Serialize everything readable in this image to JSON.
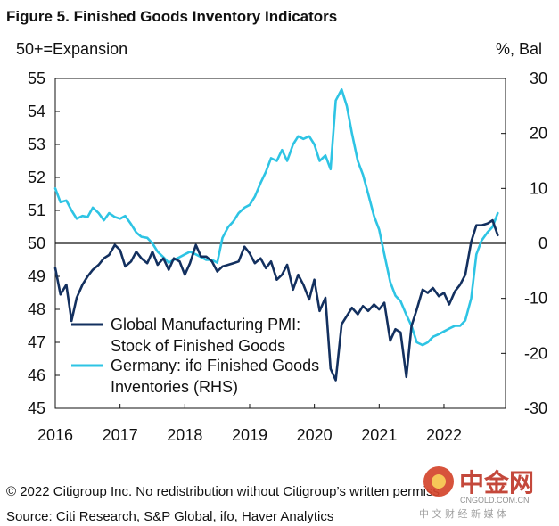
{
  "chart_data": {
    "type": "line",
    "title": "Figure 5. Finished Goods Inventory Indicators",
    "y_left_label": "50+=Expansion",
    "y_right_label": "%, Bal",
    "y_left_lim": [
      45,
      55
    ],
    "y_right_lim": [
      -30,
      30
    ],
    "x_lim": [
      2016,
      2022.95
    ],
    "x_ticks": [
      "2016",
      "2017",
      "2018",
      "2019",
      "2020",
      "2021",
      "2022"
    ],
    "y_left_ticks": [
      "45",
      "46",
      "47",
      "48",
      "49",
      "50",
      "51",
      "52",
      "53",
      "54",
      "55"
    ],
    "y_right_ticks": [
      "-30",
      "-20",
      "-10",
      "0",
      "10",
      "20",
      "30"
    ],
    "reference_line": 50,
    "legend_placement": "lower-left inside plot",
    "series": [
      {
        "name": "Global Manufacturing PMI: Stock of Finished Goods",
        "axis": "left",
        "color": "#13305f",
        "points": [
          [
            2016.0,
            49.25
          ],
          [
            2016.08,
            48.45
          ],
          [
            2016.17,
            48.75
          ],
          [
            2016.25,
            47.65
          ],
          [
            2016.33,
            48.35
          ],
          [
            2016.42,
            48.75
          ],
          [
            2016.5,
            49.0
          ],
          [
            2016.58,
            49.2
          ],
          [
            2016.67,
            49.35
          ],
          [
            2016.75,
            49.55
          ],
          [
            2016.83,
            49.65
          ],
          [
            2016.92,
            49.95
          ],
          [
            2017.0,
            49.8
          ],
          [
            2017.08,
            49.3
          ],
          [
            2017.17,
            49.45
          ],
          [
            2017.25,
            49.75
          ],
          [
            2017.33,
            49.55
          ],
          [
            2017.42,
            49.4
          ],
          [
            2017.5,
            49.75
          ],
          [
            2017.58,
            49.35
          ],
          [
            2017.67,
            49.55
          ],
          [
            2017.75,
            49.2
          ],
          [
            2017.83,
            49.55
          ],
          [
            2017.92,
            49.45
          ],
          [
            2018.0,
            49.05
          ],
          [
            2018.08,
            49.4
          ],
          [
            2018.17,
            49.95
          ],
          [
            2018.25,
            49.6
          ],
          [
            2018.33,
            49.6
          ],
          [
            2018.42,
            49.45
          ],
          [
            2018.5,
            49.15
          ],
          [
            2018.58,
            49.3
          ],
          [
            2018.67,
            49.35
          ],
          [
            2018.75,
            49.4
          ],
          [
            2018.83,
            49.45
          ],
          [
            2018.92,
            49.9
          ],
          [
            2019.0,
            49.7
          ],
          [
            2019.08,
            49.4
          ],
          [
            2019.17,
            49.55
          ],
          [
            2019.25,
            49.25
          ],
          [
            2019.33,
            49.45
          ],
          [
            2019.42,
            48.9
          ],
          [
            2019.5,
            49.05
          ],
          [
            2019.58,
            49.35
          ],
          [
            2019.67,
            48.6
          ],
          [
            2019.75,
            49.05
          ],
          [
            2019.83,
            48.75
          ],
          [
            2019.92,
            48.3
          ],
          [
            2020.0,
            48.9
          ],
          [
            2020.08,
            47.95
          ],
          [
            2020.17,
            48.35
          ],
          [
            2020.25,
            46.2
          ],
          [
            2020.33,
            45.85
          ],
          [
            2020.42,
            47.55
          ],
          [
            2020.5,
            47.8
          ],
          [
            2020.58,
            48.05
          ],
          [
            2020.67,
            47.85
          ],
          [
            2020.75,
            48.1
          ],
          [
            2020.83,
            47.95
          ],
          [
            2020.92,
            48.15
          ],
          [
            2021.0,
            48.0
          ],
          [
            2021.08,
            48.2
          ],
          [
            2021.17,
            47.05
          ],
          [
            2021.25,
            47.4
          ],
          [
            2021.33,
            47.3
          ],
          [
            2021.42,
            45.95
          ],
          [
            2021.5,
            47.5
          ],
          [
            2021.58,
            48.0
          ],
          [
            2021.67,
            48.6
          ],
          [
            2021.75,
            48.5
          ],
          [
            2021.83,
            48.65
          ],
          [
            2021.92,
            48.4
          ],
          [
            2022.0,
            48.5
          ],
          [
            2022.08,
            48.15
          ],
          [
            2022.17,
            48.55
          ],
          [
            2022.25,
            48.75
          ],
          [
            2022.33,
            49.05
          ],
          [
            2022.42,
            50.05
          ],
          [
            2022.5,
            50.55
          ],
          [
            2022.58,
            50.55
          ],
          [
            2022.67,
            50.6
          ],
          [
            2022.75,
            50.7
          ],
          [
            2022.83,
            50.25
          ]
        ]
      },
      {
        "name": "Germany: ifo Finished Goods Inventories (RHS)",
        "axis": "right",
        "color": "#2ec4e4",
        "points": [
          [
            2016.0,
            10.0
          ],
          [
            2016.08,
            7.5
          ],
          [
            2016.17,
            7.8
          ],
          [
            2016.25,
            6.0
          ],
          [
            2016.33,
            4.5
          ],
          [
            2016.42,
            5.0
          ],
          [
            2016.5,
            4.8
          ],
          [
            2016.58,
            6.5
          ],
          [
            2016.67,
            5.5
          ],
          [
            2016.75,
            4.2
          ],
          [
            2016.83,
            5.5
          ],
          [
            2016.92,
            4.8
          ],
          [
            2017.0,
            4.5
          ],
          [
            2017.08,
            5.0
          ],
          [
            2017.17,
            3.5
          ],
          [
            2017.25,
            2.0
          ],
          [
            2017.33,
            1.2
          ],
          [
            2017.42,
            1.0
          ],
          [
            2017.5,
            0.0
          ],
          [
            2017.58,
            -1.5
          ],
          [
            2017.67,
            -2.5
          ],
          [
            2017.75,
            -3.5
          ],
          [
            2017.83,
            -3.0
          ],
          [
            2017.92,
            -2.5
          ],
          [
            2018.0,
            -2.0
          ],
          [
            2018.08,
            -1.5
          ],
          [
            2018.17,
            -2.0
          ],
          [
            2018.25,
            -2.5
          ],
          [
            2018.33,
            -3.0
          ],
          [
            2018.42,
            -3.0
          ],
          [
            2018.5,
            -3.5
          ],
          [
            2018.58,
            1.0
          ],
          [
            2018.67,
            3.0
          ],
          [
            2018.75,
            4.0
          ],
          [
            2018.83,
            5.5
          ],
          [
            2018.92,
            6.5
          ],
          [
            2019.0,
            7.0
          ],
          [
            2019.08,
            8.5
          ],
          [
            2019.17,
            11.0
          ],
          [
            2019.25,
            13.0
          ],
          [
            2019.33,
            15.5
          ],
          [
            2019.42,
            15.0
          ],
          [
            2019.5,
            17.0
          ],
          [
            2019.58,
            15.0
          ],
          [
            2019.67,
            18.0
          ],
          [
            2019.75,
            19.5
          ],
          [
            2019.83,
            19.0
          ],
          [
            2019.92,
            19.5
          ],
          [
            2020.0,
            18.0
          ],
          [
            2020.08,
            15.0
          ],
          [
            2020.17,
            16.0
          ],
          [
            2020.25,
            13.5
          ],
          [
            2020.33,
            26.0
          ],
          [
            2020.42,
            28.0
          ],
          [
            2020.5,
            25.0
          ],
          [
            2020.58,
            20.0
          ],
          [
            2020.67,
            15.0
          ],
          [
            2020.75,
            12.5
          ],
          [
            2020.83,
            9.0
          ],
          [
            2020.92,
            5.0
          ],
          [
            2021.0,
            2.5
          ],
          [
            2021.08,
            -2.0
          ],
          [
            2021.17,
            -7.0
          ],
          [
            2021.25,
            -9.5
          ],
          [
            2021.33,
            -10.5
          ],
          [
            2021.42,
            -13.0
          ],
          [
            2021.5,
            -15.0
          ],
          [
            2021.58,
            -18.0
          ],
          [
            2021.67,
            -18.5
          ],
          [
            2021.75,
            -18.0
          ],
          [
            2021.83,
            -17.0
          ],
          [
            2021.92,
            -16.5
          ],
          [
            2022.0,
            -16.0
          ],
          [
            2022.08,
            -15.5
          ],
          [
            2022.17,
            -15.0
          ],
          [
            2022.25,
            -15.0
          ],
          [
            2022.33,
            -14.0
          ],
          [
            2022.42,
            -10.0
          ],
          [
            2022.5,
            -2.0
          ],
          [
            2022.58,
            0.5
          ],
          [
            2022.67,
            2.0
          ],
          [
            2022.75,
            3.0
          ],
          [
            2022.83,
            5.5
          ]
        ]
      }
    ]
  },
  "footer": {
    "copyright": "© 2022 Citigroup Inc. No redistribution without Citigroup’s written permiss",
    "source": "Source: Citi Research, S&P Global, ifo, Haver Analytics"
  },
  "watermark": {
    "name": "中金网",
    "domain": "CNGOLD.COM.CN",
    "tagline": "中 文 财 经 新 媒 体",
    "color": "#c0392b"
  }
}
